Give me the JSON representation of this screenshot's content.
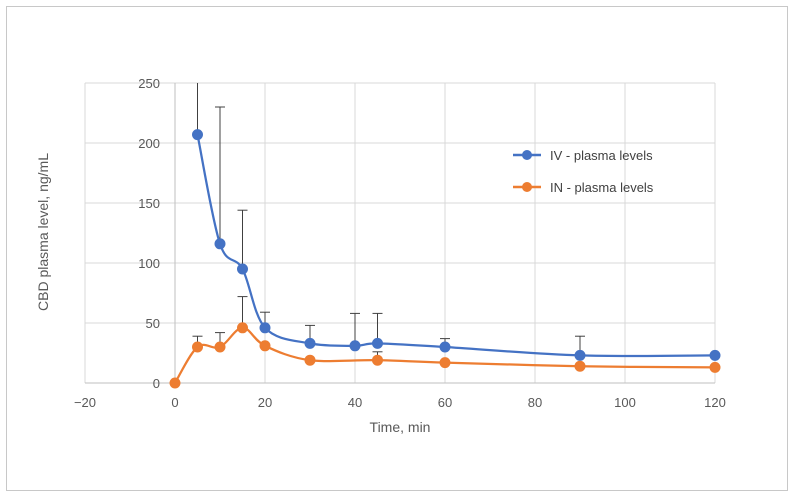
{
  "chart_data": {
    "type": "scatter",
    "title": "",
    "xlabel": "Time, min",
    "ylabel": "CBD plasma level, ng/mL",
    "xlim": [
      -20,
      120
    ],
    "ylim": [
      0,
      250
    ],
    "x_ticks": [
      -20,
      0,
      20,
      40,
      60,
      80,
      100,
      120
    ],
    "y_ticks": [
      0,
      50,
      100,
      150,
      200,
      250
    ],
    "grid": true,
    "legend_position": "right",
    "series": [
      {
        "name": "IV - plasma levels",
        "color": "#4472C4",
        "x": [
          5,
          10,
          15,
          20,
          30,
          40,
          45,
          60,
          90,
          120
        ],
        "y": [
          207,
          116,
          95,
          46,
          33,
          31,
          33,
          30,
          23,
          23
        ],
        "error_upper": [
          50,
          114,
          49,
          13,
          15,
          27,
          25,
          7,
          16,
          null
        ]
      },
      {
        "name": "IN - plasma levels",
        "color": "#ED7D31",
        "x": [
          0,
          5,
          10,
          15,
          20,
          30,
          45,
          60,
          90,
          120
        ],
        "y": [
          0,
          30,
          30,
          46,
          31,
          19,
          19,
          17,
          14,
          13
        ],
        "error_upper": [
          null,
          9,
          12,
          26,
          null,
          null,
          7,
          null,
          null,
          null
        ]
      }
    ]
  }
}
